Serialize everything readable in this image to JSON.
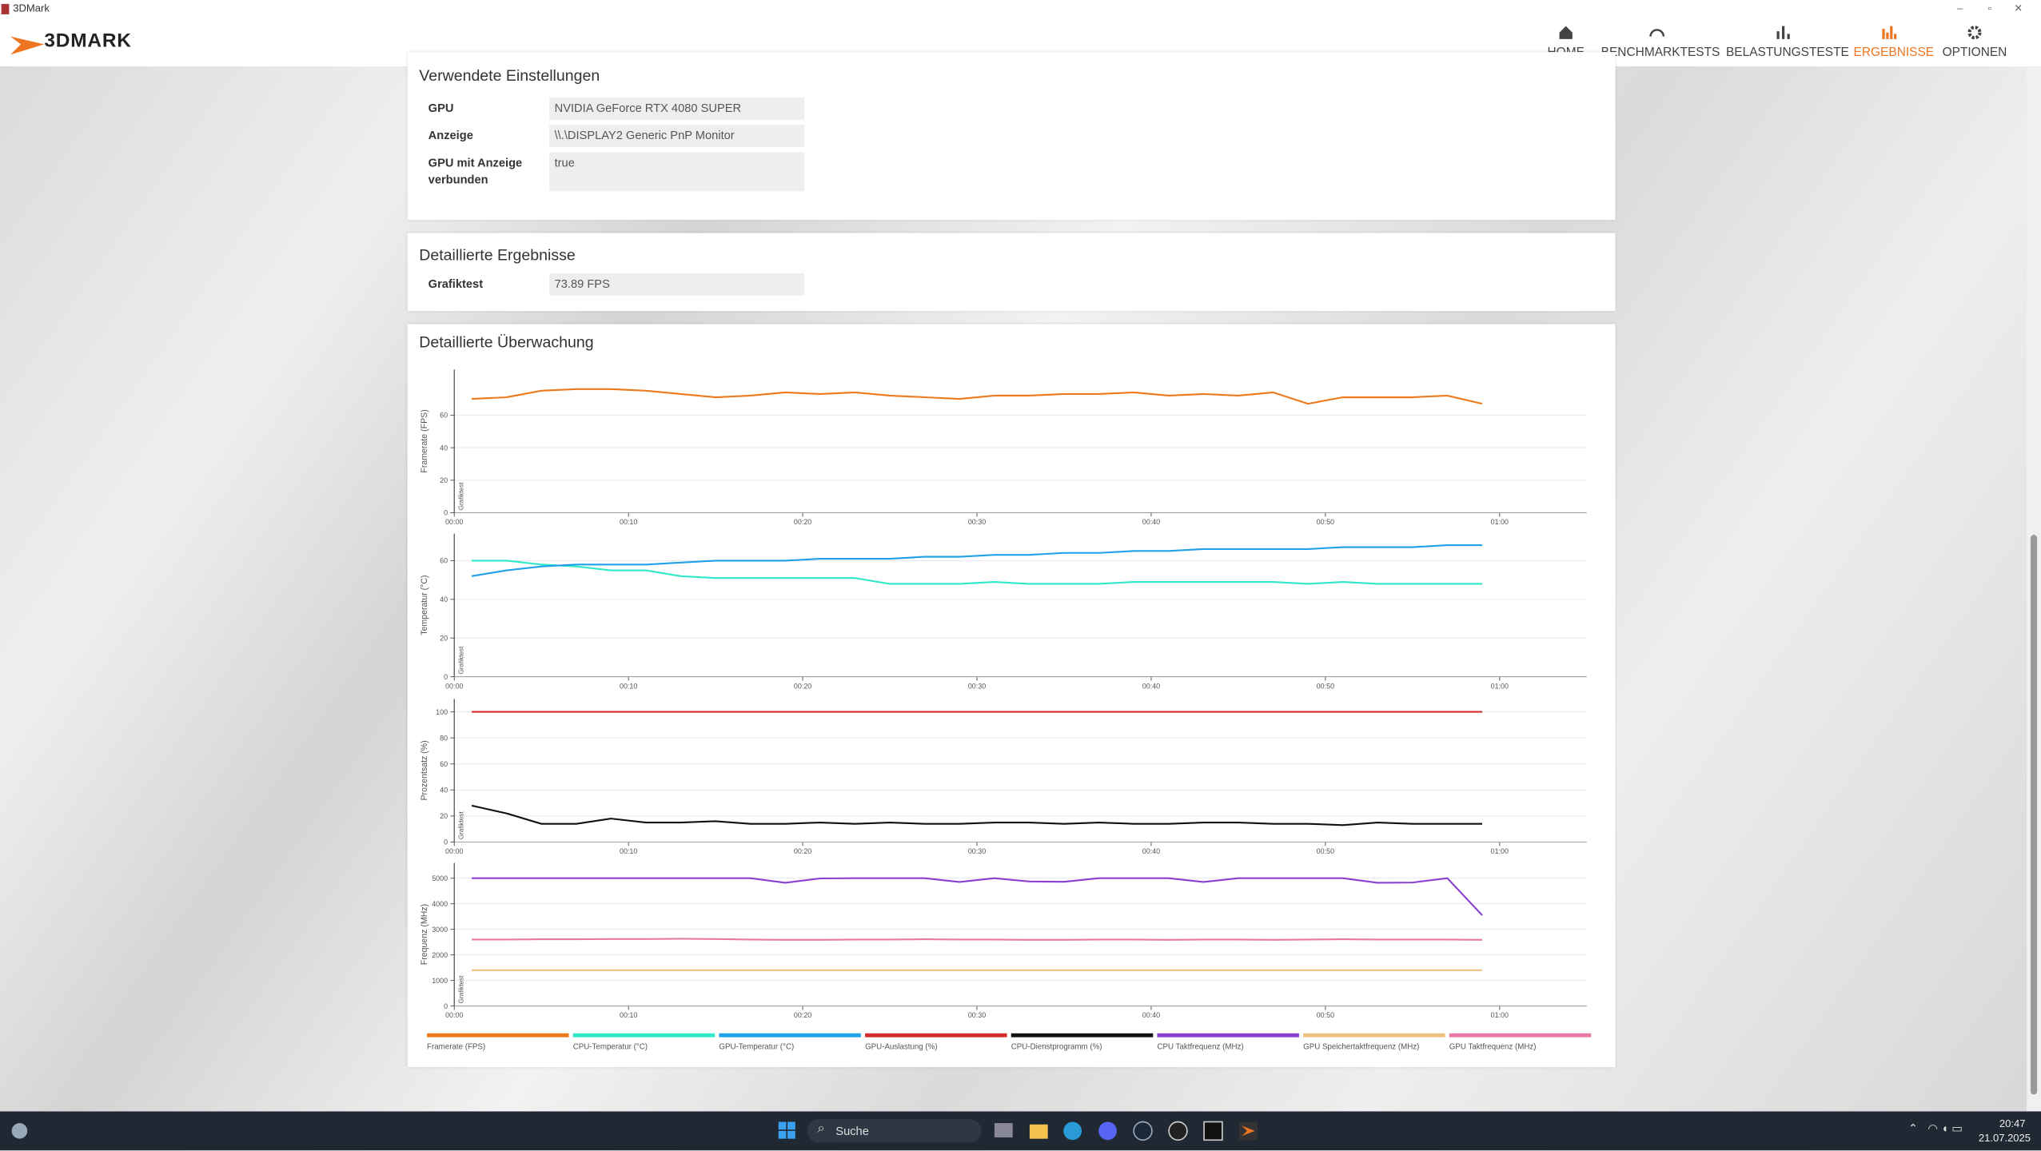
{
  "window": {
    "title": "3DMark"
  },
  "header": {
    "logo": "3DMARK",
    "nav": [
      "HOME",
      "BENCHMARKTESTS",
      "BELASTUNGSTESTE",
      "ERGEBNISSE",
      "OPTIONEN"
    ]
  },
  "settings": {
    "title": "Verwendete Einstellungen",
    "rows": [
      [
        "GPU",
        "NVIDIA GeForce RTX 4080 SUPER"
      ],
      [
        "Anzeige",
        "\\\\.\\DISPLAY2 Generic PnP Monitor"
      ],
      [
        "GPU mit Anzeige verbunden",
        "true"
      ]
    ]
  },
  "results": {
    "title": "Detaillierte Ergebnisse",
    "rows": [
      [
        "Grafiktest",
        "73.89 FPS"
      ]
    ]
  },
  "monitoring": {
    "title": "Detaillierte Überwachung"
  },
  "chart_data": [
    {
      "type": "line",
      "ylabel": "Framerate (FPS)",
      "annotation": "Grafiktest",
      "grid": true,
      "x": [
        1,
        3,
        5,
        7,
        9,
        11,
        13,
        15,
        17,
        19,
        21,
        23,
        25,
        27,
        29,
        31,
        33,
        35,
        37,
        39,
        41,
        43,
        45,
        47,
        49,
        51,
        53,
        55,
        57,
        59
      ],
      "xlim": [
        0,
        65
      ],
      "xticks": [
        {
          "value": 0,
          "label": "00:00"
        },
        {
          "value": 10,
          "label": "00:10"
        },
        {
          "value": 20,
          "label": "00:20"
        },
        {
          "value": 30,
          "label": "00:30"
        },
        {
          "value": 40,
          "label": "00:40"
        },
        {
          "value": 50,
          "label": "00:50"
        },
        {
          "value": 60,
          "label": "01:00"
        }
      ],
      "ylim": [
        0,
        88
      ],
      "yticks": [
        0,
        20,
        40,
        60
      ],
      "series": [
        {
          "name": "Framerate (FPS)",
          "color": "#ec7a1c",
          "values": [
            70,
            71,
            75,
            76,
            76,
            75,
            73,
            71,
            72,
            74,
            73,
            74,
            72,
            71,
            70,
            72,
            72,
            73,
            73,
            74,
            72,
            73,
            72,
            74,
            67,
            71,
            71,
            71,
            72,
            67
          ]
        }
      ]
    },
    {
      "type": "line",
      "ylabel": "Temperatur (°C)",
      "annotation": "Grafiktest",
      "grid": true,
      "x": [
        1,
        3,
        5,
        7,
        9,
        11,
        13,
        15,
        17,
        19,
        21,
        23,
        25,
        27,
        29,
        31,
        33,
        35,
        37,
        39,
        41,
        43,
        45,
        47,
        49,
        51,
        53,
        55,
        57,
        59
      ],
      "xlim": [
        0,
        65
      ],
      "xticks": [
        {
          "value": 0,
          "label": "00:00"
        },
        {
          "value": 10,
          "label": "00:10"
        },
        {
          "value": 20,
          "label": "00:20"
        },
        {
          "value": 30,
          "label": "00:30"
        },
        {
          "value": 40,
          "label": "00:40"
        },
        {
          "value": 50,
          "label": "00:50"
        },
        {
          "value": 60,
          "label": "01:00"
        }
      ],
      "ylim": [
        0,
        74
      ],
      "yticks": [
        0,
        20,
        40,
        60
      ],
      "series": [
        {
          "name": "CPU-Temperatur (°C)",
          "color": "#2ee8c8",
          "values": [
            60,
            60,
            58,
            57,
            55,
            55,
            52,
            51,
            51,
            51,
            51,
            51,
            48,
            48,
            48,
            49,
            48,
            48,
            48,
            49,
            49,
            49,
            49,
            49,
            48,
            49,
            48,
            48,
            48,
            48
          ]
        },
        {
          "name": "GPU-Temperatur (°C)",
          "color": "#1ea1e8",
          "values": [
            52,
            55,
            57,
            58,
            58,
            58,
            59,
            60,
            60,
            60,
            61,
            61,
            61,
            62,
            62,
            63,
            63,
            64,
            64,
            65,
            65,
            66,
            66,
            66,
            66,
            67,
            67,
            67,
            68,
            68
          ]
        }
      ]
    },
    {
      "type": "line",
      "ylabel": "Prozentsatz (%)",
      "annotation": "Grafiktest",
      "grid": true,
      "x": [
        1,
        3,
        5,
        7,
        9,
        11,
        13,
        15,
        17,
        19,
        21,
        23,
        25,
        27,
        29,
        31,
        33,
        35,
        37,
        39,
        41,
        43,
        45,
        47,
        49,
        51,
        53,
        55,
        57,
        59
      ],
      "xlim": [
        0,
        65
      ],
      "xticks": [
        {
          "value": 0,
          "label": "00:00"
        },
        {
          "value": 10,
          "label": "00:10"
        },
        {
          "value": 20,
          "label": "00:20"
        },
        {
          "value": 30,
          "label": "00:30"
        },
        {
          "value": 40,
          "label": "00:40"
        },
        {
          "value": 50,
          "label": "00:50"
        },
        {
          "value": 60,
          "label": "01:00"
        }
      ],
      "ylim": [
        0,
        110
      ],
      "yticks": [
        0,
        20,
        40,
        60,
        80,
        100
      ],
      "series": [
        {
          "name": "GPU-Auslastung (%)",
          "color": "#d32a2a",
          "values": [
            100,
            100,
            100,
            100,
            100,
            100,
            100,
            100,
            100,
            100,
            100,
            100,
            100,
            100,
            100,
            100,
            100,
            100,
            100,
            100,
            100,
            100,
            100,
            100,
            100,
            100,
            100,
            100,
            100,
            100
          ]
        },
        {
          "name": "CPU-Dienstprogramm (%)",
          "color": "#111111",
          "values": [
            28,
            22,
            14,
            14,
            18,
            15,
            15,
            16,
            14,
            14,
            15,
            14,
            15,
            14,
            14,
            15,
            15,
            14,
            15,
            14,
            14,
            15,
            15,
            14,
            14,
            13,
            15,
            14,
            14,
            14
          ]
        }
      ]
    },
    {
      "type": "line",
      "ylabel": "Frequenz (MHz)",
      "annotation": "Grafiktest",
      "grid": true,
      "x": [
        1,
        3,
        5,
        7,
        9,
        11,
        13,
        15,
        17,
        19,
        21,
        23,
        25,
        27,
        29,
        31,
        33,
        35,
        37,
        39,
        41,
        43,
        45,
        47,
        49,
        51,
        53,
        55,
        57,
        59
      ],
      "xlim": [
        0,
        65
      ],
      "xticks": [
        {
          "value": 0,
          "label": "00:00"
        },
        {
          "value": 10,
          "label": "00:10"
        },
        {
          "value": 20,
          "label": "00:20"
        },
        {
          "value": 30,
          "label": "00:30"
        },
        {
          "value": 40,
          "label": "00:40"
        },
        {
          "value": 50,
          "label": "00:50"
        },
        {
          "value": 60,
          "label": "01:00"
        }
      ],
      "ylim": [
        0,
        5600
      ],
      "yticks": [
        0,
        1000,
        2000,
        3000,
        4000,
        5000
      ],
      "series": [
        {
          "name": "CPU Taktfrequenz (MHz)",
          "color": "#8a3fd1",
          "values": [
            5000,
            5000,
            5000,
            5000,
            5000,
            5000,
            5000,
            5000,
            5000,
            4820,
            4990,
            5000,
            5000,
            5000,
            4850,
            5000,
            4870,
            4860,
            5000,
            5000,
            5000,
            4850,
            5000,
            5000,
            5000,
            5000,
            4820,
            4830,
            5000,
            3550
          ]
        },
        {
          "name": "GPU Speichertaktfrequenz (MHz)",
          "color": "#f0c080",
          "values": [
            1400,
            1400,
            1400,
            1400,
            1400,
            1400,
            1400,
            1400,
            1400,
            1400,
            1400,
            1400,
            1400,
            1400,
            1400,
            1400,
            1400,
            1400,
            1400,
            1400,
            1400,
            1400,
            1400,
            1400,
            1400,
            1400,
            1400,
            1400,
            1400,
            1400
          ]
        },
        {
          "name": "GPU Taktfrequenz (MHz)",
          "color": "#e879a6",
          "values": [
            2600,
            2600,
            2610,
            2610,
            2620,
            2620,
            2630,
            2620,
            2600,
            2590,
            2590,
            2600,
            2600,
            2610,
            2600,
            2600,
            2590,
            2590,
            2600,
            2600,
            2590,
            2600,
            2600,
            2590,
            2600,
            2610,
            2600,
            2600,
            2600,
            2590
          ]
        }
      ]
    }
  ],
  "taskbar": {
    "search": "Suche",
    "time": "20:47",
    "date": "21.07.2025"
  }
}
